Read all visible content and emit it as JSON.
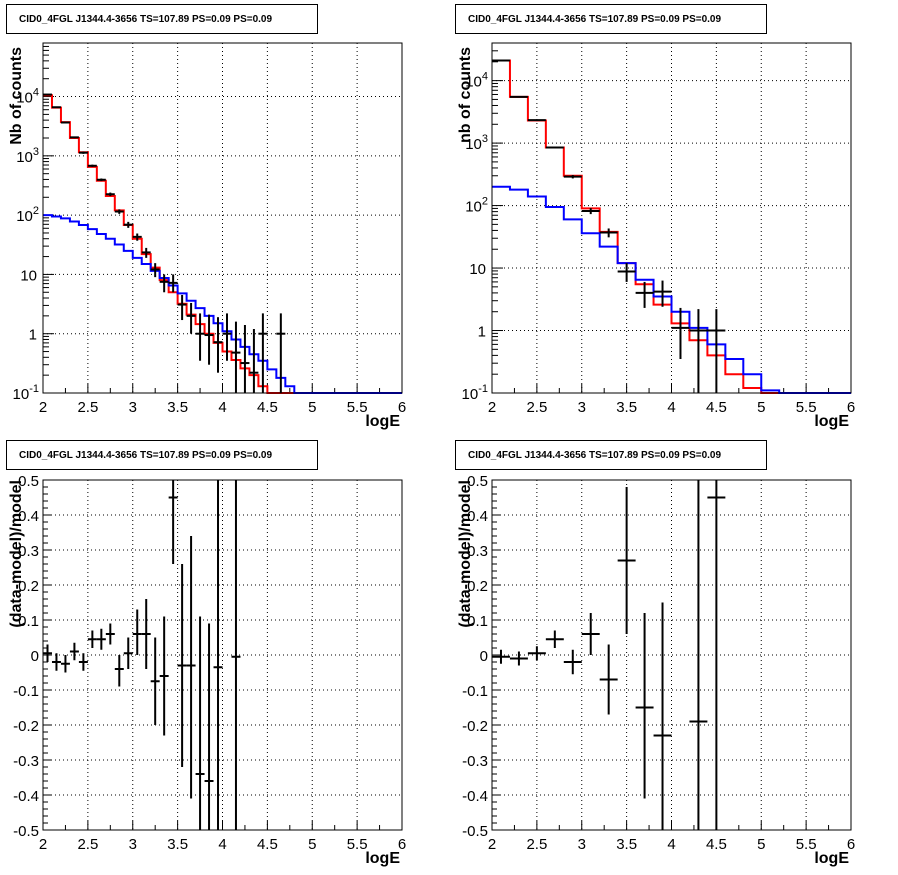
{
  "panels": [
    {
      "title": "CID0_4FGL J1344.4-3656 TS=107.89 PS=0.09 PS=0.09",
      "xlabel": "logE",
      "ylabel": "Nb of counts"
    },
    {
      "title": "CID0_4FGL J1344.4-3656 TS=107.89 PS=0.09 PS=0.09",
      "xlabel": "logE",
      "ylabel": "nb of counts"
    },
    {
      "title": "CID0_4FGL J1344.4-3656 TS=107.89 PS=0.09 PS=0.09",
      "xlabel": "logE",
      "ylabel": "(data-model)/model"
    },
    {
      "title": "CID0_4FGL J1344.4-3656 TS=107.89 PS=0.09 PS=0.09",
      "xlabel": "logE",
      "ylabel": "(data-model)/model"
    }
  ],
  "chart_data": [
    {
      "type": "line",
      "title": "CID0_4FGL J1344.4-3656 TS=107.89 PS=0.09 PS=0.09",
      "xlabel": "logE",
      "ylabel": "Nb of counts",
      "xlim": [
        2,
        6
      ],
      "ylim": [
        0.1,
        80000
      ],
      "yscale": "log",
      "grid": true,
      "x_ticks": [
        "2",
        "2.5",
        "3",
        "3.5",
        "4",
        "4.5",
        "5",
        "5.5",
        "6"
      ],
      "y_ticks": [
        "10^-1",
        "1",
        "10",
        "10^2",
        "10^3",
        "10^4"
      ],
      "bin_edges": [
        2,
        2.1,
        2.2,
        2.3,
        2.4,
        2.5,
        2.6,
        2.7,
        2.8,
        2.9,
        3,
        3.1,
        3.2,
        3.3,
        3.4,
        3.5,
        3.6,
        3.7,
        3.8,
        3.9,
        4,
        4.1,
        4.2,
        4.3,
        4.4,
        4.5,
        4.6,
        4.7,
        4.8,
        4.9,
        5,
        5.1,
        5.2,
        5.3,
        5.4,
        5.5,
        5.6,
        5.7,
        5.8,
        5.9,
        6
      ],
      "series": [
        {
          "color": "#ff0000",
          "values": [
            10500,
            6500,
            3700,
            2000,
            1150,
            650,
            380,
            210,
            120,
            68,
            40,
            22,
            13,
            8,
            5,
            3.2,
            2.1,
            1.45,
            1.0,
            0.7,
            0.5,
            0.36,
            0.26,
            0.2,
            0.13,
            0.1,
            0.1,
            0.1,
            0.1,
            0.1,
            0.1,
            0.1,
            0.1,
            0.1,
            0.1,
            0.1,
            0.1,
            0.1,
            0.1,
            0.1
          ]
        },
        {
          "color": "#0000ff",
          "values": [
            100,
            95,
            88,
            78,
            68,
            58,
            48,
            40,
            32,
            25,
            19,
            15,
            11.5,
            8.7,
            6.5,
            4.8,
            3.6,
            2.7,
            2.0,
            1.5,
            1.1,
            0.8,
            0.6,
            0.45,
            0.35,
            0.25,
            0.18,
            0.13,
            0.1,
            0.1,
            0.1,
            0.1,
            0.1,
            0.1,
            0.1,
            0.1,
            0.1,
            0.1,
            0.1,
            0.1
          ]
        }
      ],
      "points": [
        {
          "x": 2.05,
          "y": 10800,
          "lo": 10600,
          "hi": 11000
        },
        {
          "x": 2.15,
          "y": 6600,
          "lo": 6450,
          "hi": 6750
        },
        {
          "x": 2.25,
          "y": 3650,
          "lo": 3550,
          "hi": 3750
        },
        {
          "x": 2.35,
          "y": 2050,
          "lo": 1980,
          "hi": 2120
        },
        {
          "x": 2.45,
          "y": 1130,
          "lo": 1080,
          "hi": 1180
        },
        {
          "x": 2.55,
          "y": 680,
          "lo": 650,
          "hi": 710
        },
        {
          "x": 2.65,
          "y": 395,
          "lo": 375,
          "hi": 415
        },
        {
          "x": 2.75,
          "y": 225,
          "lo": 210,
          "hi": 240
        },
        {
          "x": 2.85,
          "y": 115,
          "lo": 105,
          "hi": 125
        },
        {
          "x": 2.95,
          "y": 69,
          "lo": 61,
          "hi": 77
        },
        {
          "x": 3.05,
          "y": 43,
          "lo": 37,
          "hi": 49
        },
        {
          "x": 3.15,
          "y": 23.5,
          "lo": 19,
          "hi": 28
        },
        {
          "x": 3.25,
          "y": 12.1,
          "lo": 9,
          "hi": 15.5
        },
        {
          "x": 3.35,
          "y": 7.5,
          "lo": 5,
          "hi": 10
        },
        {
          "x": 3.45,
          "y": 7.2,
          "lo": 5,
          "hi": 10
        },
        {
          "x": 3.55,
          "y": 3.1,
          "lo": 1.7,
          "hi": 4.5
        },
        {
          "x": 3.65,
          "y": 2.0,
          "lo": 1.0,
          "hi": 3.3
        },
        {
          "x": 3.75,
          "y": 1.0,
          "lo": 0.35,
          "hi": 2.2
        },
        {
          "x": 3.85,
          "y": 0.95,
          "lo": 0.3,
          "hi": 2.1
        },
        {
          "x": 3.95,
          "y": 0.72,
          "lo": 0.22,
          "hi": 1.9
        },
        {
          "x": 4.05,
          "y": 1.0,
          "lo": 0.35,
          "hi": 2.2
        },
        {
          "x": 4.15,
          "y": 0.48,
          "lo": 0.1,
          "hi": 1.6
        },
        {
          "x": 4.25,
          "y": 0.32,
          "lo": 0.1,
          "hi": 1.4
        },
        {
          "x": 4.35,
          "y": 0.22,
          "lo": 0.1,
          "hi": 1.2
        },
        {
          "x": 4.45,
          "y": 1.0,
          "lo": 0.1,
          "hi": 2.2
        },
        {
          "x": 4.65,
          "y": 1.0,
          "lo": 0.1,
          "hi": 2.2
        }
      ]
    },
    {
      "type": "line",
      "title": "CID0_4FGL J1344.4-3656 TS=107.89 PS=0.09 PS=0.09",
      "xlabel": "logE",
      "ylabel": "nb of counts",
      "xlim": [
        2,
        6
      ],
      "ylim": [
        0.1,
        40000
      ],
      "yscale": "log",
      "grid": true,
      "x_ticks": [
        "2",
        "2.5",
        "3",
        "3.5",
        "4",
        "4.5",
        "5",
        "5.5",
        "6"
      ],
      "y_ticks": [
        "10^-1",
        "1",
        "10",
        "10^2",
        "10^3",
        "10^4"
      ],
      "bin_edges": [
        2,
        2.2,
        2.4,
        2.6,
        2.8,
        3,
        3.2,
        3.4,
        3.6,
        3.8,
        4,
        4.2,
        4.4,
        4.6,
        4.8,
        5,
        5.2,
        5.4,
        5.6,
        5.8,
        6
      ],
      "series": [
        {
          "color": "#ff0000",
          "values": [
            21000,
            5500,
            2300,
            850,
            300,
            90,
            38,
            12,
            5.5,
            2.6,
            1.3,
            0.7,
            0.4,
            0.2,
            0.12,
            0.1,
            0.1,
            0.1,
            0.1,
            0.1
          ]
        },
        {
          "color": "#0000ff",
          "values": [
            200,
            180,
            140,
            95,
            60,
            36,
            22,
            12,
            6.5,
            3.5,
            2.0,
            1.1,
            0.6,
            0.35,
            0.2,
            0.11,
            0.1,
            0.1,
            0.1,
            0.1
          ]
        }
      ],
      "points": [
        {
          "x": 2.1,
          "y": 21000,
          "lo": 20800,
          "hi": 21200
        },
        {
          "x": 2.3,
          "y": 5500,
          "lo": 5400,
          "hi": 5600
        },
        {
          "x": 2.5,
          "y": 2330,
          "lo": 2280,
          "hi": 2380
        },
        {
          "x": 2.7,
          "y": 850,
          "lo": 820,
          "hi": 880
        },
        {
          "x": 2.9,
          "y": 290,
          "lo": 272,
          "hi": 308
        },
        {
          "x": 3.1,
          "y": 82,
          "lo": 73,
          "hi": 91
        },
        {
          "x": 3.3,
          "y": 37,
          "lo": 31,
          "hi": 43
        },
        {
          "x": 3.5,
          "y": 8.8,
          "lo": 6,
          "hi": 12
        },
        {
          "x": 3.7,
          "y": 4.0,
          "lo": 2.3,
          "hi": 6.0
        },
        {
          "x": 3.9,
          "y": 4.2,
          "lo": 2.4,
          "hi": 6.3
        },
        {
          "x": 4.1,
          "y": 1.1,
          "lo": 0.35,
          "hi": 2.3
        },
        {
          "x": 4.3,
          "y": 1.0,
          "lo": 0.1,
          "hi": 2.2
        },
        {
          "x": 4.5,
          "y": 1.0,
          "lo": 0.1,
          "hi": 2.2
        }
      ]
    },
    {
      "type": "scatter",
      "title": "CID0_4FGL J1344.4-3656 TS=107.89 PS=0.09 PS=0.09",
      "xlabel": "logE",
      "ylabel": "(data-model)/model",
      "xlim": [
        2,
        6
      ],
      "ylim": [
        -0.5,
        0.5
      ],
      "grid": true,
      "x_ticks": [
        "2",
        "2.5",
        "3",
        "3.5",
        "4",
        "4.5",
        "5",
        "5.5",
        "6"
      ],
      "y_ticks": [
        "-0.5",
        "-0.4",
        "-0.3",
        "-0.2",
        "-0.1",
        "0",
        "0.1",
        "0.2",
        "0.3",
        "0.4",
        "0.5"
      ],
      "xerr": 0.05,
      "points": [
        {
          "x": 2.05,
          "y": 0.005,
          "lo": -0.02,
          "hi": 0.03
        },
        {
          "x": 2.15,
          "y": -0.02,
          "lo": -0.045,
          "hi": 0.005
        },
        {
          "x": 2.25,
          "y": -0.025,
          "lo": -0.05,
          "hi": 0.0
        },
        {
          "x": 2.35,
          "y": 0.01,
          "lo": -0.015,
          "hi": 0.035
        },
        {
          "x": 2.45,
          "y": -0.02,
          "lo": -0.045,
          "hi": 0.005
        },
        {
          "x": 2.55,
          "y": 0.045,
          "lo": 0.02,
          "hi": 0.07
        },
        {
          "x": 2.65,
          "y": 0.045,
          "lo": 0.015,
          "hi": 0.075
        },
        {
          "x": 2.75,
          "y": 0.06,
          "lo": 0.03,
          "hi": 0.09
        },
        {
          "x": 2.85,
          "y": -0.04,
          "lo": -0.09,
          "hi": 0.0
        },
        {
          "x": 2.95,
          "y": 0.005,
          "lo": -0.04,
          "hi": 0.05
        },
        {
          "x": 3.05,
          "y": 0.06,
          "lo": 0.0,
          "hi": 0.13
        },
        {
          "x": 3.15,
          "y": 0.06,
          "lo": -0.04,
          "hi": 0.16
        },
        {
          "x": 3.25,
          "y": -0.075,
          "lo": -0.2,
          "hi": 0.05
        },
        {
          "x": 3.35,
          "y": -0.06,
          "lo": -0.23,
          "hi": 0.11
        },
        {
          "x": 3.45,
          "y": 0.45,
          "lo": 0.26,
          "hi": 0.5
        },
        {
          "x": 3.55,
          "y": -0.03,
          "lo": -0.32,
          "hi": 0.26
        },
        {
          "x": 3.65,
          "y": -0.03,
          "lo": -0.41,
          "hi": 0.34
        },
        {
          "x": 3.75,
          "y": -0.34,
          "lo": -0.5,
          "hi": 0.11
        },
        {
          "x": 3.85,
          "y": -0.36,
          "lo": -0.5,
          "hi": 0.09
        },
        {
          "x": 3.95,
          "y": -0.035,
          "lo": -0.5,
          "hi": 0.5
        },
        {
          "x": 4.15,
          "y": -0.005,
          "lo": -0.5,
          "hi": 0.5
        }
      ]
    },
    {
      "type": "scatter",
      "title": "CID0_4FGL J1344.4-3656 TS=107.89 PS=0.09 PS=0.09",
      "xlabel": "logE",
      "ylabel": "(data-model)/model",
      "xlim": [
        2,
        6
      ],
      "ylim": [
        -0.5,
        0.5
      ],
      "grid": true,
      "x_ticks": [
        "2",
        "2.5",
        "3",
        "3.5",
        "4",
        "4.5",
        "5",
        "5.5",
        "6"
      ],
      "y_ticks": [
        "-0.5",
        "-0.4",
        "-0.3",
        "-0.2",
        "-0.1",
        "0",
        "0.1",
        "0.2",
        "0.3",
        "0.4",
        "0.5"
      ],
      "xerr": 0.1,
      "points": [
        {
          "x": 2.1,
          "y": -0.005,
          "lo": -0.025,
          "hi": 0.015
        },
        {
          "x": 2.3,
          "y": -0.01,
          "lo": -0.03,
          "hi": 0.01
        },
        {
          "x": 2.5,
          "y": 0.005,
          "lo": -0.015,
          "hi": 0.025
        },
        {
          "x": 2.7,
          "y": 0.045,
          "lo": 0.02,
          "hi": 0.07
        },
        {
          "x": 2.9,
          "y": -0.02,
          "lo": -0.055,
          "hi": 0.015
        },
        {
          "x": 3.1,
          "y": 0.06,
          "lo": 0.0,
          "hi": 0.12
        },
        {
          "x": 3.3,
          "y": -0.07,
          "lo": -0.17,
          "hi": 0.03
        },
        {
          "x": 3.5,
          "y": 0.27,
          "lo": 0.06,
          "hi": 0.48
        },
        {
          "x": 3.7,
          "y": -0.15,
          "lo": -0.41,
          "hi": 0.12
        },
        {
          "x": 3.9,
          "y": -0.23,
          "lo": -0.5,
          "hi": 0.15
        },
        {
          "x": 4.3,
          "y": -0.19,
          "lo": -0.5,
          "hi": 0.5
        },
        {
          "x": 4.5,
          "y": 0.45,
          "lo": -0.5,
          "hi": 0.5
        }
      ]
    }
  ]
}
